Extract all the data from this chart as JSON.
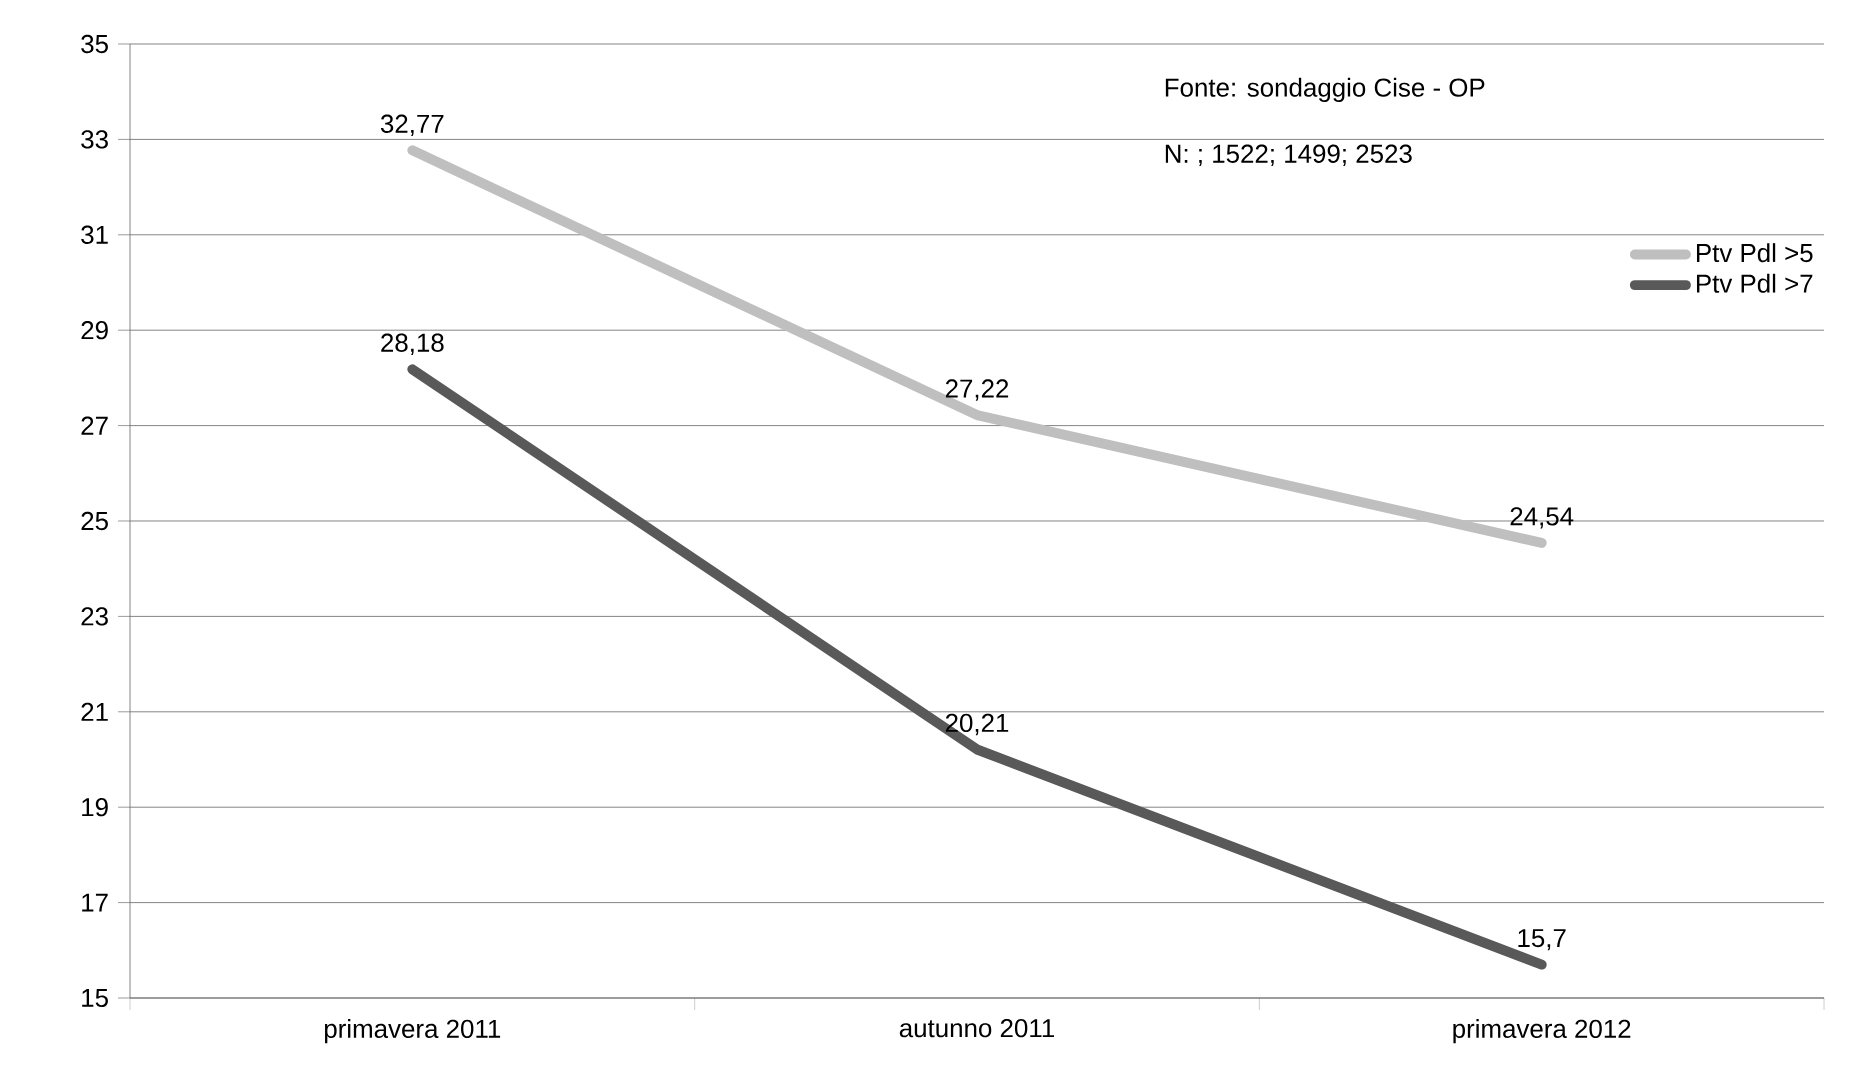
{
  "chart_data": {
    "type": "line",
    "categories": [
      "primavera 2011",
      "autunno 2011",
      "primavera 2012"
    ],
    "series": [
      {
        "name": "Ptv Pdl >5",
        "color": "#bfbfbf",
        "values": [
          32.77,
          27.22,
          24.54
        ],
        "value_labels": [
          "32,77",
          "27,22",
          "24,54"
        ]
      },
      {
        "name": "Ptv Pdl >7",
        "color": "#595959",
        "values": [
          28.18,
          20.21,
          15.7
        ],
        "value_labels": [
          "28,18",
          "20,21",
          "15,7"
        ]
      }
    ],
    "ylim": [
      15,
      35
    ],
    "yticks": [
      15,
      17,
      19,
      21,
      23,
      25,
      27,
      29,
      31,
      33,
      35
    ],
    "grid": "y",
    "legend": "right",
    "marker": "none",
    "line_style": "solid",
    "annotations": [
      "Fonte: sondaggio Cise - OP",
      "N:  ; 1522; 1499; 2523"
    ]
  }
}
